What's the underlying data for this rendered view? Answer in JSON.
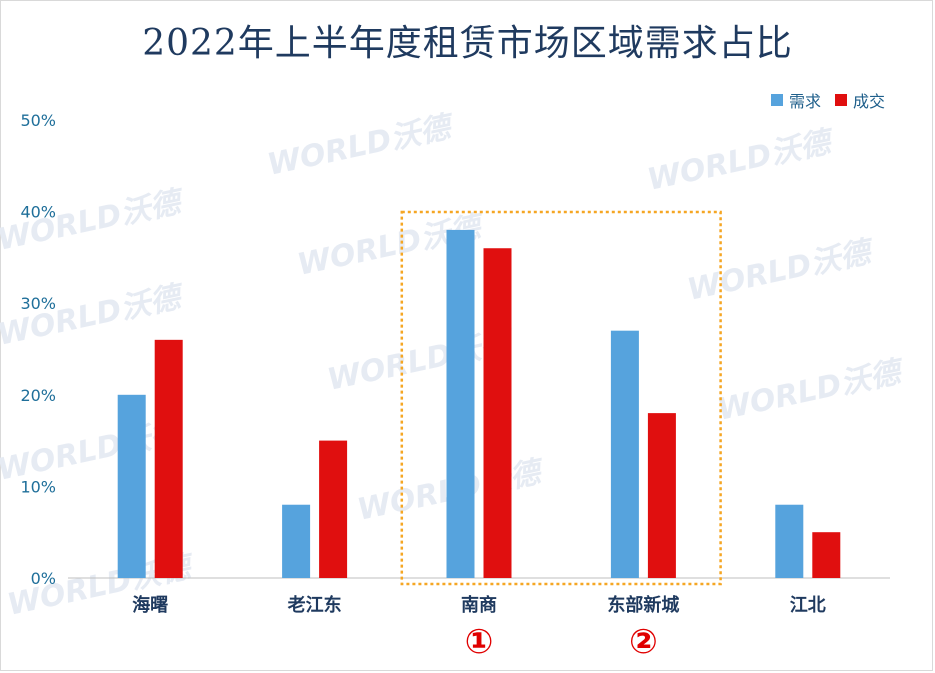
{
  "chart_data": {
    "type": "bar",
    "title": "2022年上半年度租赁市场区域需求占比",
    "categories": [
      "海曙",
      "老江东",
      "南商",
      "东部新城",
      "江北"
    ],
    "series": [
      {
        "name": "需求",
        "color": "#56a3dd",
        "values": [
          20,
          8,
          38,
          27,
          8
        ]
      },
      {
        "name": "成交",
        "color": "#e00f0f",
        "values": [
          26,
          15,
          36,
          18,
          5
        ]
      }
    ],
    "ylim": [
      0,
      50
    ],
    "yticks": [
      "0%",
      "10%",
      "20%",
      "30%",
      "40%",
      "50%"
    ],
    "grid": false,
    "legend": "top-right",
    "highlight": {
      "categories": [
        "南商",
        "东部新城"
      ],
      "style": "dashed orange box"
    },
    "annotations": [
      "①",
      "②"
    ]
  },
  "watermark": "WORLD沃德"
}
